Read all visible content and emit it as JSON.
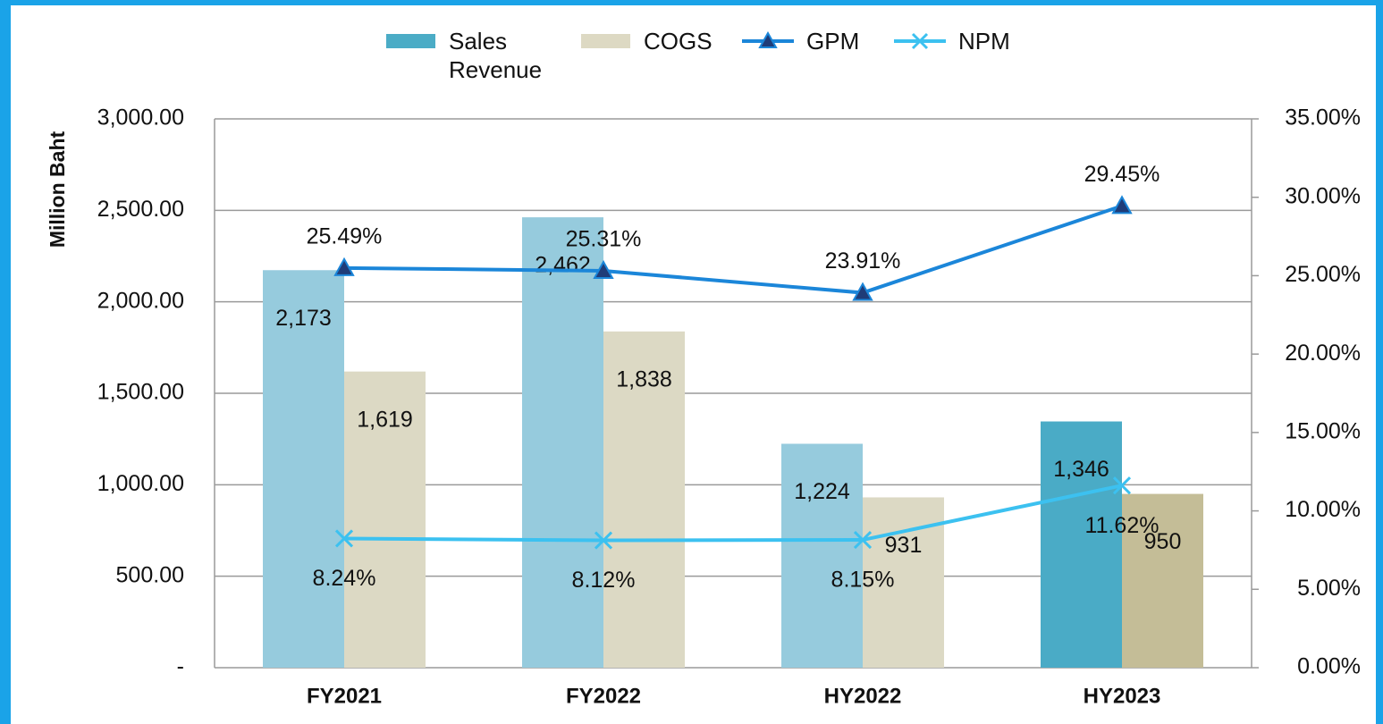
{
  "chart_data": {
    "type": "bar",
    "ylabel": "Million Baht",
    "categories": [
      "FY2021",
      "FY2022",
      "HY2022",
      "HY2023"
    ],
    "series": [
      {
        "name": "Sales Revenue",
        "type": "bar",
        "color": "#4bacc6",
        "colors": [
          "#96cbdd",
          "#96cbdd",
          "#96cbdd",
          "#4aabc6"
        ],
        "values": [
          2173,
          2462,
          1224,
          1346
        ],
        "value_labels": [
          "2,173",
          "2,462",
          "1,224",
          "1,346"
        ]
      },
      {
        "name": "COGS",
        "type": "bar",
        "color": "#ddd9c3",
        "colors": [
          "#dcd9c4",
          "#dcd9c4",
          "#dcd9c4",
          "#c4bd97"
        ],
        "values": [
          1619,
          1838,
          931,
          950
        ],
        "value_labels": [
          "1,619",
          "1,838",
          "931",
          "950"
        ]
      },
      {
        "name": "GPM",
        "type": "line",
        "axis": "y2",
        "marker": "triangle",
        "color": "#1b86d9",
        "values": [
          25.49,
          25.31,
          23.91,
          29.45
        ],
        "value_labels": [
          "25.49%",
          "25.31%",
          "23.91%",
          "29.45%"
        ]
      },
      {
        "name": "NPM",
        "type": "line",
        "axis": "y2",
        "marker": "x",
        "color": "#3cc1f0",
        "values": [
          8.24,
          8.12,
          8.15,
          11.62
        ],
        "value_labels": [
          "8.24%",
          "8.12%",
          "8.15%",
          "11.62%"
        ]
      }
    ],
    "ylim": [
      0,
      3000
    ],
    "yticks": [
      {
        "value": 0,
        "label": "-"
      },
      {
        "value": 500,
        "label": "500.00"
      },
      {
        "value": 1000,
        "label": "1,000.00"
      },
      {
        "value": 1500,
        "label": "1,500.00"
      },
      {
        "value": 2000,
        "label": "2,000.00"
      },
      {
        "value": 2500,
        "label": "2,500.00"
      },
      {
        "value": 3000,
        "label": "3,000.00"
      }
    ],
    "y2lim": [
      0,
      35
    ],
    "y2ticks": [
      {
        "value": 0,
        "label": "0.00%"
      },
      {
        "value": 5,
        "label": "5.00%"
      },
      {
        "value": 10,
        "label": "10.00%"
      },
      {
        "value": 15,
        "label": "15.00%"
      },
      {
        "value": 20,
        "label": "20.00%"
      },
      {
        "value": 25,
        "label": "25.00%"
      },
      {
        "value": 30,
        "label": "30.00%"
      },
      {
        "value": 35,
        "label": "35.00%"
      }
    ],
    "grid": true
  }
}
